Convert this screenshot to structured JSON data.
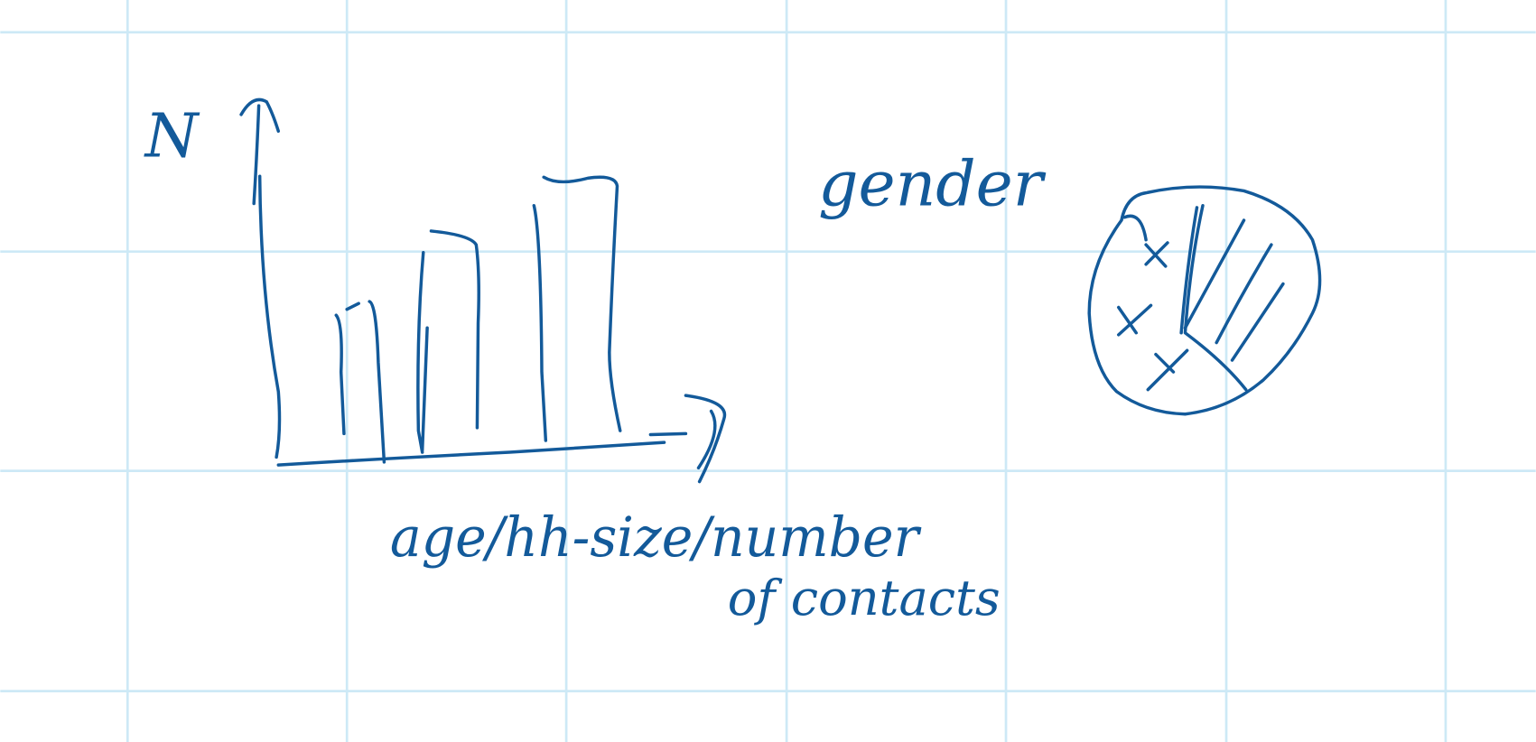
{
  "sketch": {
    "bar_chart": {
      "y_label": "N",
      "x_label": [
        "age/hh-size/number",
        "of contacts"
      ]
    },
    "pie_chart": {
      "label": "gender"
    }
  }
}
